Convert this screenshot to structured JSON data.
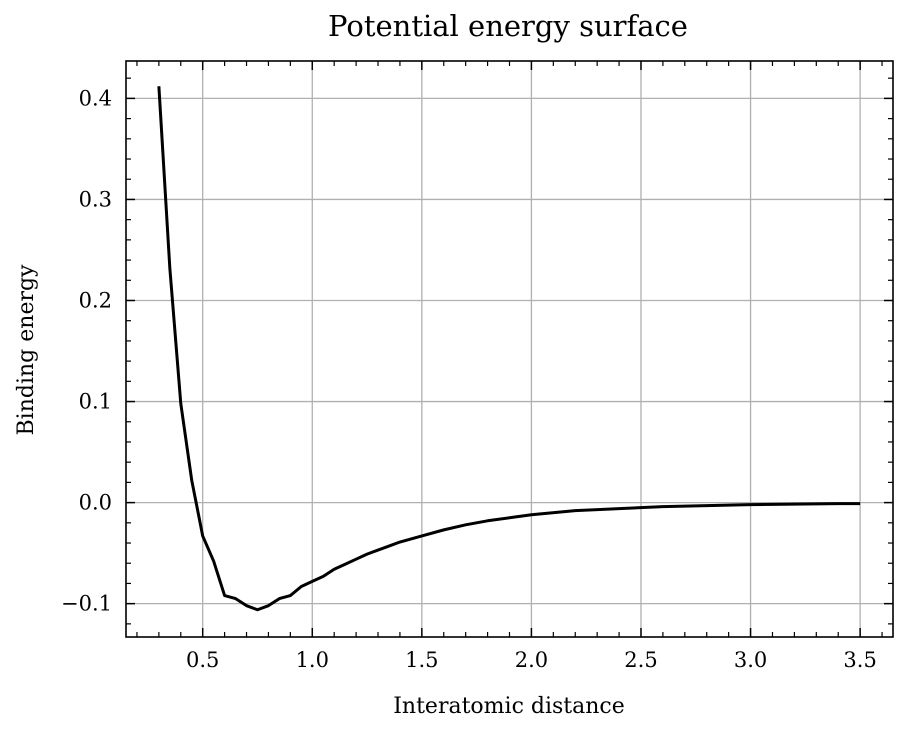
{
  "chart_data": {
    "type": "line",
    "title": "Potential energy surface",
    "xlabel": "Interatomic distance",
    "ylabel": "Binding energy",
    "xlim": [
      0.15,
      3.65
    ],
    "ylim": [
      -0.133,
      0.437
    ],
    "grid": true,
    "x_ticks": [
      0.5,
      1.0,
      1.5,
      2.0,
      2.5,
      3.0,
      3.5
    ],
    "x_tick_labels": [
      "0.5",
      "1.0",
      "1.5",
      "2.0",
      "2.5",
      "3.0",
      "3.5"
    ],
    "y_ticks": [
      -0.1,
      0.0,
      0.1,
      0.2,
      0.3,
      0.4
    ],
    "y_tick_labels": [
      "−0.1",
      "0.0",
      "0.1",
      "0.2",
      "0.3",
      "0.4"
    ],
    "x_minor_step": 0.1,
    "y_minor_step": 0.02,
    "series": [
      {
        "color": "#000000",
        "x": [
          0.3,
          0.35,
          0.4,
          0.45,
          0.5,
          0.55,
          0.6,
          0.65,
          0.7,
          0.75,
          0.8,
          0.85,
          0.9,
          0.95,
          1.0,
          1.05,
          1.1,
          1.15,
          1.2,
          1.25,
          1.3,
          1.35,
          1.4,
          1.5,
          1.6,
          1.7,
          1.8,
          1.9,
          2.0,
          2.2,
          2.4,
          2.6,
          2.8,
          3.0,
          3.2,
          3.4,
          3.5
        ],
        "y": [
          0.412,
          0.232,
          0.098,
          0.022,
          -0.033,
          -0.058,
          -0.092,
          -0.095,
          -0.102,
          -0.106,
          -0.102,
          -0.095,
          -0.092,
          -0.083,
          -0.078,
          -0.073,
          -0.066,
          -0.061,
          -0.056,
          -0.051,
          -0.047,
          -0.043,
          -0.039,
          -0.033,
          -0.027,
          -0.022,
          -0.018,
          -0.015,
          -0.012,
          -0.008,
          -0.006,
          -0.004,
          -0.003,
          -0.002,
          -0.0015,
          -0.001,
          -0.001
        ]
      }
    ]
  }
}
